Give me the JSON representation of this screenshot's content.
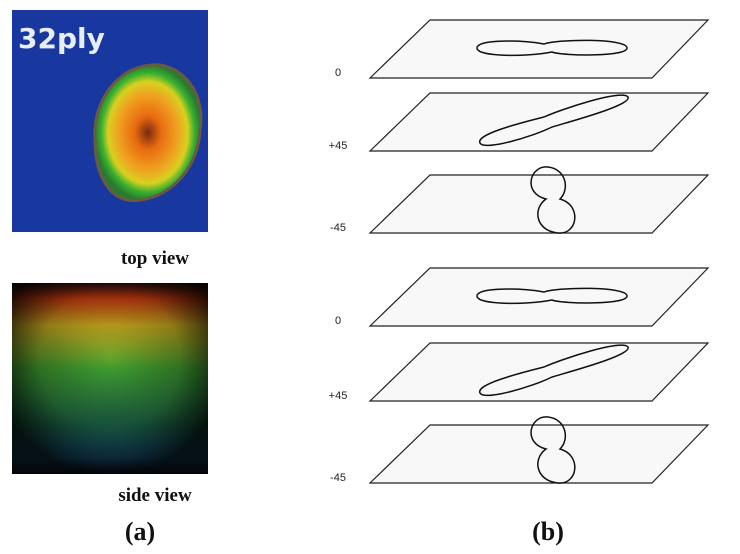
{
  "panel_a": {
    "overlay": "32ply",
    "top_caption": "top view",
    "side_caption": "side view",
    "label": "(a)"
  },
  "panel_b": {
    "plies": [
      "0",
      "+45",
      "-45",
      "0",
      "+45",
      "-45"
    ],
    "label": "(b)"
  }
}
